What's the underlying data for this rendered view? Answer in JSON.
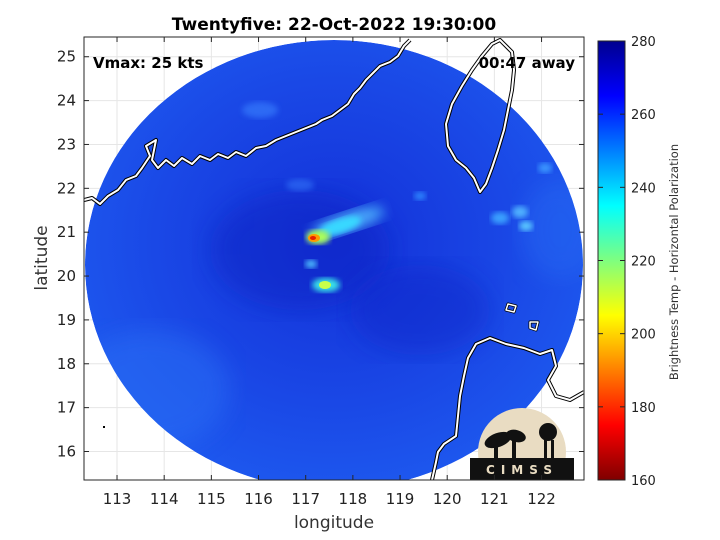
{
  "title": "Twentyfive: 22-Oct-2022 19:30:00",
  "annotations": {
    "vmax": "Vmax: 25 kts",
    "away": "00:47 away"
  },
  "logo_text": "CIMSS",
  "map": {
    "xlabel": "longitude",
    "ylabel": "latitude",
    "xlim": [
      112.3,
      122.9
    ],
    "ylim": [
      15.35,
      25.45
    ],
    "xticks": [
      113,
      114,
      115,
      116,
      117,
      118,
      119,
      120,
      121,
      122
    ],
    "yticks": [
      16,
      17,
      18,
      19,
      20,
      21,
      22,
      23,
      24,
      25
    ],
    "xtick_labels": [
      "113",
      "114",
      "115",
      "116",
      "117",
      "118",
      "119",
      "120",
      "121",
      "122"
    ],
    "ytick_labels": [
      "16",
      "17",
      "18",
      "19",
      "20",
      "21",
      "22",
      "23",
      "24",
      "25"
    ],
    "grid": true
  },
  "colorbar": {
    "label": "Brightness Temp - Horizontal Polarization",
    "range": [
      160,
      280
    ],
    "ticks": [
      160,
      180,
      200,
      220,
      240,
      260,
      280
    ],
    "tick_labels": [
      "160",
      "180",
      "200",
      "220",
      "240",
      "260",
      "280"
    ],
    "colormap": "jet",
    "colors": [
      "#7f0000",
      "#ff0000",
      "#ff7f00",
      "#ffff00",
      "#7fff7f",
      "#00ffff",
      "#007fff",
      "#0000ff",
      "#00008f"
    ]
  },
  "swath": {
    "center": [
      117.5,
      20.15
    ],
    "background_temp": 268,
    "features": [
      {
        "name": "convective-core",
        "lon": 117.1,
        "lat": 20.88,
        "temp": 190
      },
      {
        "name": "convective-band-north",
        "lon": 117.8,
        "lat": 21.1,
        "temp": 232
      },
      {
        "name": "convective-cell-south",
        "lon": 117.3,
        "lat": 19.85,
        "temp": 222
      },
      {
        "name": "small-cell-west",
        "lon": 116.95,
        "lat": 20.35,
        "temp": 238
      },
      {
        "name": "cells-east-1",
        "lon": 121.2,
        "lat": 21.3,
        "temp": 240
      },
      {
        "name": "cells-east-2",
        "lon": 121.6,
        "lat": 21.55,
        "temp": 244
      }
    ]
  },
  "colors": {
    "coastline": "#ffffff",
    "land_outline": "#000000",
    "grid": "#e6e6e6",
    "axes": "#262626"
  }
}
